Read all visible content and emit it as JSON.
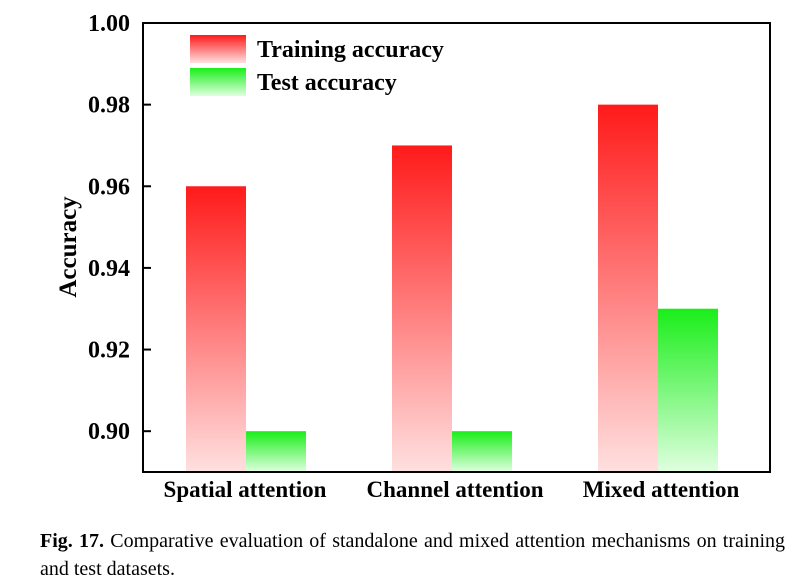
{
  "chart_data": {
    "type": "bar",
    "categories": [
      "Spatial attention",
      "Channel attention",
      "Mixed attention"
    ],
    "series": [
      {
        "name": "Training accuracy",
        "values": [
          0.96,
          0.97,
          0.98
        ],
        "color_top": "#ff1a1a",
        "color_bottom": "#ffe0e0"
      },
      {
        "name": "Test accuracy",
        "values": [
          0.9,
          0.9,
          0.93
        ],
        "color_top": "#1aee1a",
        "color_bottom": "#e0ffe0"
      }
    ],
    "ylabel": "Accuracy",
    "xlabel": "",
    "ylim": [
      0.89,
      1.0
    ],
    "yticks": [
      "0.90",
      "0.92",
      "0.94",
      "0.96",
      "0.98",
      "1.00"
    ],
    "legend_position": "top-left"
  },
  "caption": {
    "label": "Fig. 17.",
    "text": "Comparative evaluation of standalone and mixed attention mechanisms on training and test datasets."
  }
}
